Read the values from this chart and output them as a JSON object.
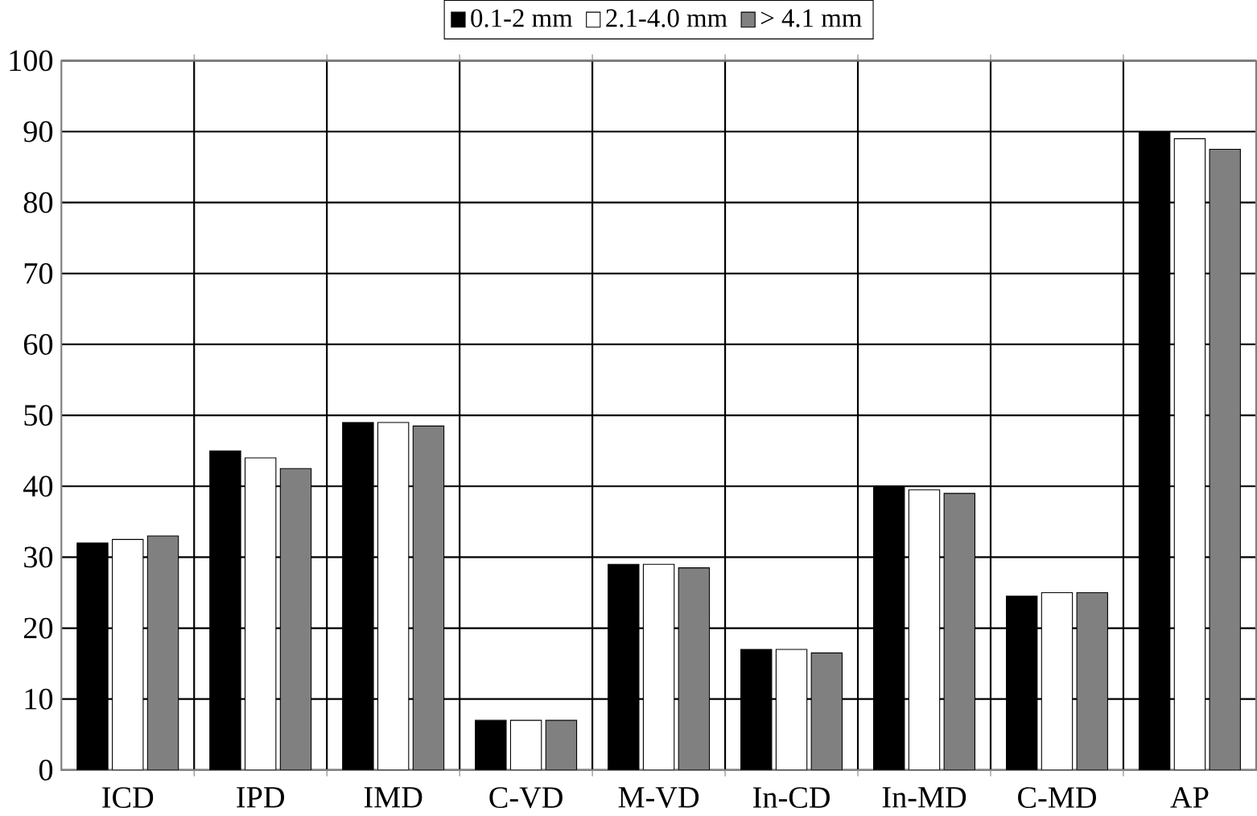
{
  "chart_data": {
    "type": "bar",
    "categories": [
      "ICD",
      "IPD",
      "IMD",
      "C-VD",
      "M-VD",
      "In-CD",
      "In-MD",
      "C-MD",
      "AP"
    ],
    "series": [
      {
        "name": "0.1-2 mm",
        "color": "#000000",
        "values": [
          32,
          45,
          49,
          7,
          29,
          17,
          40,
          24.5,
          90
        ]
      },
      {
        "name": "2.1-4.0 mm",
        "color": "#ffffff",
        "values": [
          32.5,
          44,
          49,
          7,
          29,
          17,
          39.5,
          25,
          89
        ]
      },
      {
        "name": "> 4.1 mm",
        "color": "#808080",
        "values": [
          33,
          42.5,
          48.5,
          7,
          28.5,
          16.5,
          39,
          25,
          87.5
        ]
      }
    ],
    "ylim": [
      0,
      100
    ],
    "yticks": [
      0,
      10,
      20,
      30,
      40,
      50,
      60,
      70,
      80,
      90,
      100
    ],
    "grid": true,
    "legend": "top"
  }
}
